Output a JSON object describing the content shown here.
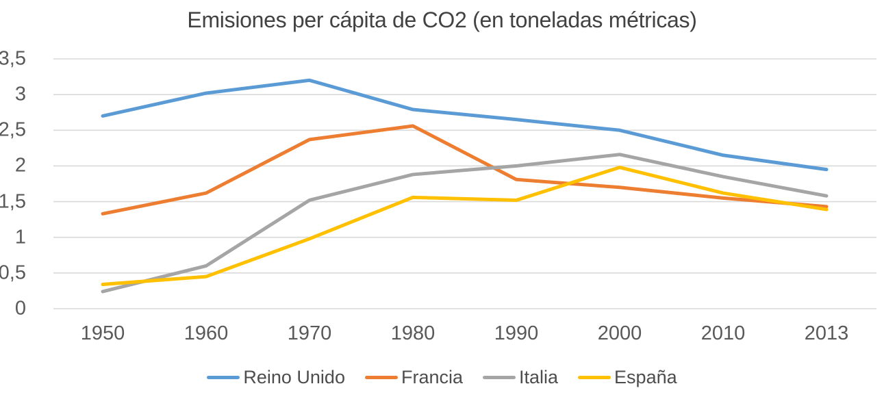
{
  "chart_data": {
    "type": "line",
    "title": "Emisiones per cápita de CO2 (en toneladas métricas)",
    "categories": [
      "1950",
      "1960",
      "1970",
      "1980",
      "1990",
      "2000",
      "2010",
      "2013"
    ],
    "series": [
      {
        "name": "Reino Unido",
        "color": "#5B9BD5",
        "values": [
          2.7,
          3.02,
          3.2,
          2.79,
          2.65,
          2.5,
          2.15,
          1.95
        ]
      },
      {
        "name": "Francia",
        "color": "#ED7D31",
        "values": [
          1.33,
          1.62,
          2.37,
          2.56,
          1.81,
          1.7,
          1.55,
          1.43
        ]
      },
      {
        "name": "Italia",
        "color": "#A5A5A5",
        "values": [
          0.24,
          0.6,
          1.52,
          1.88,
          2.0,
          2.16,
          1.85,
          1.58
        ]
      },
      {
        "name": "España",
        "color": "#FFC000",
        "values": [
          0.34,
          0.45,
          0.98,
          1.56,
          1.52,
          1.98,
          1.62,
          1.39
        ]
      }
    ],
    "y_ticks": [
      "3,5",
      "3",
      "2,5",
      "2",
      "1,5",
      "1",
      "0,5",
      "0"
    ],
    "y_tick_values": [
      3.5,
      3.0,
      2.5,
      2.0,
      1.5,
      1.0,
      0.5,
      0.0
    ],
    "ylim": [
      0,
      3.5
    ],
    "grid": "horizontal",
    "gridline_color": "#D9D9D9",
    "legend_position": "bottom",
    "text_color": "#595959",
    "background_color": "#FFFFFF"
  }
}
